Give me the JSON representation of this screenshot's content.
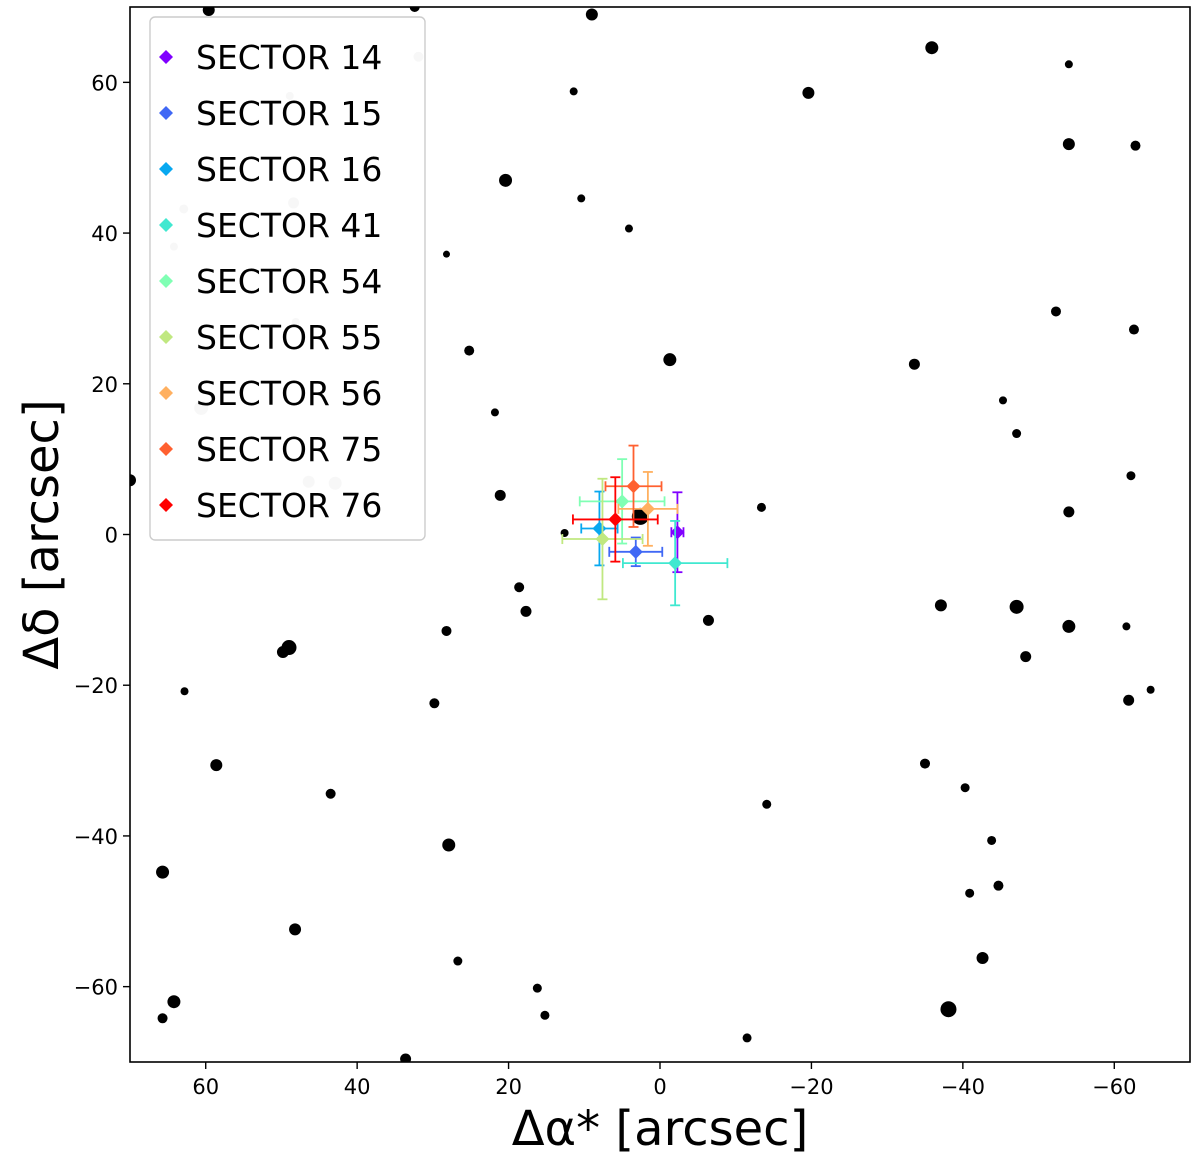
{
  "chart_data": {
    "type": "scatter",
    "title": "",
    "xlabel": "Δα* [arcsec]",
    "ylabel": "Δδ [arcsec]",
    "xlim": [
      70,
      -70
    ],
    "ylim": [
      -70,
      70
    ],
    "xticks": [
      60,
      40,
      20,
      0,
      -20,
      -40,
      -60
    ],
    "yticks": [
      60,
      40,
      20,
      0,
      -20,
      -40,
      -60
    ],
    "x_tick_labels": [
      "60",
      "40",
      "20",
      "0",
      "−20",
      "−40",
      "−60"
    ],
    "y_tick_labels": [
      "60",
      "40",
      "20",
      "0",
      "−20",
      "−40",
      "−60"
    ],
    "grid": false,
    "legend_position": "top-left",
    "colors": {
      "field_star": "#000000",
      "faint_star": "#c8c8c8"
    },
    "field_stars": [
      {
        "x": 59.6,
        "y": 69.6,
        "s": 6
      },
      {
        "x": 32.4,
        "y": 70.0,
        "s": 5
      },
      {
        "x": 9.0,
        "y": 69.0,
        "s": 6
      },
      {
        "x": 11.4,
        "y": 58.8,
        "s": 4
      },
      {
        "x": -35.9,
        "y": 64.6,
        "s": 6.5
      },
      {
        "x": -19.6,
        "y": 58.6,
        "s": 6
      },
      {
        "x": -54.0,
        "y": 62.4,
        "s": 4
      },
      {
        "x": -54.0,
        "y": 51.8,
        "s": 6
      },
      {
        "x": -62.8,
        "y": 51.6,
        "s": 5
      },
      {
        "x": 20.4,
        "y": 47.0,
        "s": 6.5
      },
      {
        "x": 10.4,
        "y": 44.6,
        "s": 4
      },
      {
        "x": 4.1,
        "y": 40.6,
        "s": 4
      },
      {
        "x": 28.2,
        "y": 37.2,
        "s": 3.5
      },
      {
        "x": -52.3,
        "y": 29.6,
        "s": 5
      },
      {
        "x": -62.6,
        "y": 27.2,
        "s": 5
      },
      {
        "x": 25.2,
        "y": 24.4,
        "s": 5
      },
      {
        "x": -1.3,
        "y": 23.2,
        "s": 6.5
      },
      {
        "x": -33.6,
        "y": 22.6,
        "s": 5.5
      },
      {
        "x": -45.3,
        "y": 17.8,
        "s": 4
      },
      {
        "x": 21.8,
        "y": 16.2,
        "s": 4
      },
      {
        "x": -47.1,
        "y": 13.4,
        "s": 4.5
      },
      {
        "x": 70.0,
        "y": 7.2,
        "s": 6
      },
      {
        "x": -62.2,
        "y": 7.8,
        "s": 4.5
      },
      {
        "x": 21.1,
        "y": 5.2,
        "s": 5.5
      },
      {
        "x": -13.4,
        "y": 3.6,
        "s": 4.5
      },
      {
        "x": -54.0,
        "y": 3.0,
        "s": 5.5
      },
      {
        "x": 12.6,
        "y": 0.2,
        "s": 4
      },
      {
        "x": 2.6,
        "y": 2.4,
        "s": 8.5
      },
      {
        "x": 18.6,
        "y": -7.0,
        "s": 5
      },
      {
        "x": 17.7,
        "y": -10.2,
        "s": 5.5
      },
      {
        "x": -6.4,
        "y": -11.4,
        "s": 5.5
      },
      {
        "x": -37.1,
        "y": -9.4,
        "s": 6
      },
      {
        "x": -47.1,
        "y": -9.6,
        "s": 7
      },
      {
        "x": -54.0,
        "y": -12.2,
        "s": 6.5
      },
      {
        "x": -61.6,
        "y": -12.2,
        "s": 4
      },
      {
        "x": 28.2,
        "y": -12.8,
        "s": 5
      },
      {
        "x": 49.0,
        "y": -15.0,
        "s": 7.5
      },
      {
        "x": 49.8,
        "y": -15.6,
        "s": 6
      },
      {
        "x": -48.3,
        "y": -16.2,
        "s": 5.5
      },
      {
        "x": 62.8,
        "y": -20.8,
        "s": 4
      },
      {
        "x": -61.9,
        "y": -22.0,
        "s": 5.5
      },
      {
        "x": -64.8,
        "y": -20.6,
        "s": 4
      },
      {
        "x": 29.8,
        "y": -22.4,
        "s": 5
      },
      {
        "x": 58.6,
        "y": -30.6,
        "s": 6
      },
      {
        "x": -35.0,
        "y": -30.4,
        "s": 5
      },
      {
        "x": 43.5,
        "y": -34.4,
        "s": 5
      },
      {
        "x": -40.3,
        "y": -33.6,
        "s": 4.5
      },
      {
        "x": -14.1,
        "y": -35.8,
        "s": 4.5
      },
      {
        "x": -43.8,
        "y": -40.6,
        "s": 4.5
      },
      {
        "x": 27.9,
        "y": -41.2,
        "s": 6.5
      },
      {
        "x": 65.7,
        "y": -44.8,
        "s": 6.5
      },
      {
        "x": -40.9,
        "y": -47.6,
        "s": 4.5
      },
      {
        "x": -44.7,
        "y": -46.6,
        "s": 5
      },
      {
        "x": 48.2,
        "y": -52.4,
        "s": 6
      },
      {
        "x": 26.7,
        "y": -56.6,
        "s": 4.5
      },
      {
        "x": -42.6,
        "y": -56.2,
        "s": 6
      },
      {
        "x": 16.2,
        "y": -60.2,
        "s": 4.5
      },
      {
        "x": 64.2,
        "y": -62.0,
        "s": 6.5
      },
      {
        "x": 15.2,
        "y": -63.8,
        "s": 4.5
      },
      {
        "x": -38.1,
        "y": -63.0,
        "s": 8
      },
      {
        "x": 65.7,
        "y": -64.2,
        "s": 5
      },
      {
        "x": -11.5,
        "y": -66.8,
        "s": 4.5
      },
      {
        "x": 33.6,
        "y": -69.6,
        "s": 5.5
      }
    ],
    "faint_stars": [
      {
        "x": 31.9,
        "y": 63.4,
        "s": 5
      },
      {
        "x": 48.9,
        "y": 58.2,
        "s": 4
      },
      {
        "x": 62.9,
        "y": 43.2,
        "s": 4.5
      },
      {
        "x": 48.4,
        "y": 44.0,
        "s": 5.5
      },
      {
        "x": 64.2,
        "y": 38.2,
        "s": 4
      },
      {
        "x": 48.1,
        "y": 28.2,
        "s": 4
      },
      {
        "x": 60.6,
        "y": 16.8,
        "s": 7
      },
      {
        "x": 46.4,
        "y": 7.0,
        "s": 6
      },
      {
        "x": 42.9,
        "y": 6.8,
        "s": 6.5
      }
    ],
    "series": [
      {
        "name": "SECTOR 14",
        "color": "#8000ff",
        "x": -2.3,
        "y": 0.3,
        "xerr": 0.8,
        "yerr": 5.3
      },
      {
        "name": "SECTOR 15",
        "color": "#4068f5",
        "x": 3.2,
        "y": -2.3,
        "xerr": 3.5,
        "yerr": 1.9
      },
      {
        "name": "SECTOR 16",
        "color": "#08a8f0",
        "x": 8.0,
        "y": 0.8,
        "xerr": 2.4,
        "yerr": 4.9
      },
      {
        "name": "SECTOR 41",
        "color": "#40e8d0",
        "x": -2.0,
        "y": -3.8,
        "xerr": 6.9,
        "yerr": 5.6
      },
      {
        "name": "SECTOR 54",
        "color": "#80ffb4",
        "x": 5.0,
        "y": 4.4,
        "xerr": 5.6,
        "yerr": 5.6
      },
      {
        "name": "SECTOR 55",
        "color": "#c0e880",
        "x": 7.6,
        "y": -0.6,
        "xerr": 5.3,
        "yerr": 8.0
      },
      {
        "name": "SECTOR 56",
        "color": "#ffb060",
        "x": 1.6,
        "y": 3.4,
        "xerr": 3.9,
        "yerr": 4.9
      },
      {
        "name": "SECTOR 75",
        "color": "#ff6030",
        "x": 3.5,
        "y": 6.4,
        "xerr": 3.7,
        "yerr": 5.4
      },
      {
        "name": "SECTOR 76",
        "color": "#ff0000",
        "x": 5.9,
        "y": 2.0,
        "xerr": 5.6,
        "yerr": 5.6
      }
    ]
  }
}
